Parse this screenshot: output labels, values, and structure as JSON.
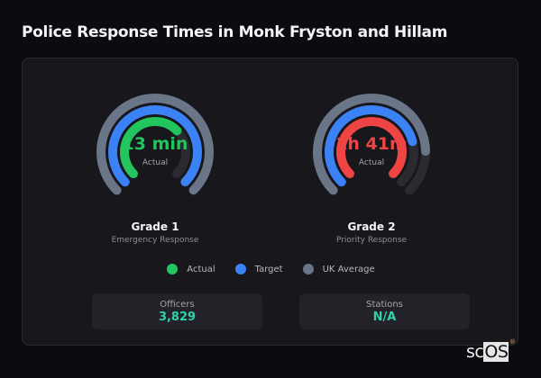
{
  "title": "Police Response Times in Monk Fryston and Hillam",
  "gauges": [
    {
      "value": "13 min",
      "value_color": "#22c55e",
      "label": "Actual",
      "title": "Grade 1",
      "subtitle": "Emergency Response",
      "rings": {
        "uk_average_pct": 100,
        "target_pct": 100,
        "actual_pct": 67
      },
      "actual_color": "#22c55e"
    },
    {
      "value": "1h 41m",
      "value_color": "#ef4444",
      "label": "Actual",
      "title": "Grade 2",
      "subtitle": "Priority Response",
      "rings": {
        "uk_average_pct": 83,
        "target_pct": 78,
        "actual_pct": 100
      },
      "actual_color": "#ef4444"
    }
  ],
  "legend": [
    {
      "label": "Actual",
      "color": "#22c55e"
    },
    {
      "label": "Target",
      "color": "#3b82f6"
    },
    {
      "label": "UK Average",
      "color": "#6b7588"
    }
  ],
  "stats": [
    {
      "label": "Officers",
      "value": "3,829"
    },
    {
      "label": "Stations",
      "value": "N/A"
    }
  ],
  "brand": {
    "prefix": "sc",
    "highlight": "OS",
    "mark": "®"
  },
  "chart_data": {
    "type": "radial-bar",
    "title": "Police Response Times in Monk Fryston and Hillam",
    "categories": [
      "Grade 1 (Emergency Response)",
      "Grade 2 (Priority Response)"
    ],
    "series": [
      {
        "name": "Actual",
        "values_display": [
          "13 min",
          "1h 41m"
        ],
        "fill_pct": [
          67,
          100
        ]
      },
      {
        "name": "Target",
        "fill_pct": [
          100,
          78
        ]
      },
      {
        "name": "UK Average",
        "fill_pct": [
          100,
          83
        ]
      }
    ],
    "arc_span_degrees": 270,
    "legend_position": "bottom"
  }
}
